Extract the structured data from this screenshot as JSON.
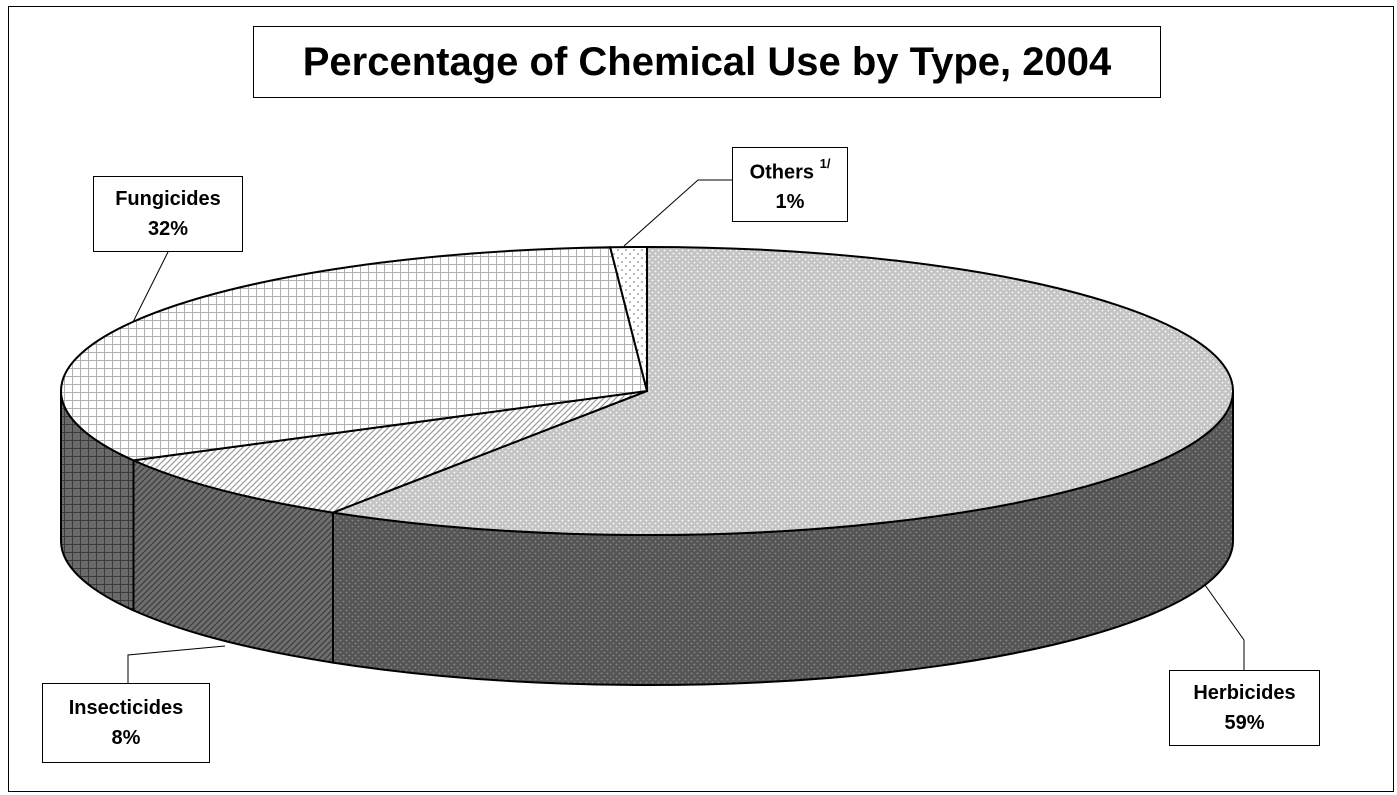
{
  "chart_data": {
    "type": "pie",
    "title": "Percentage of Chemical Use by Type, 2004",
    "slices": [
      {
        "label": "Herbicides",
        "value": 59,
        "value_label": "59%"
      },
      {
        "label": "Insecticides",
        "value": 8,
        "value_label": "8%"
      },
      {
        "label": "Fungicides",
        "value": 32,
        "value_label": "32%"
      },
      {
        "label": "Others",
        "footnote": "1/",
        "value": 1,
        "value_label": "1%"
      }
    ],
    "style": "3d-pie",
    "legend": "none",
    "data_labels": "callout-boxes"
  }
}
